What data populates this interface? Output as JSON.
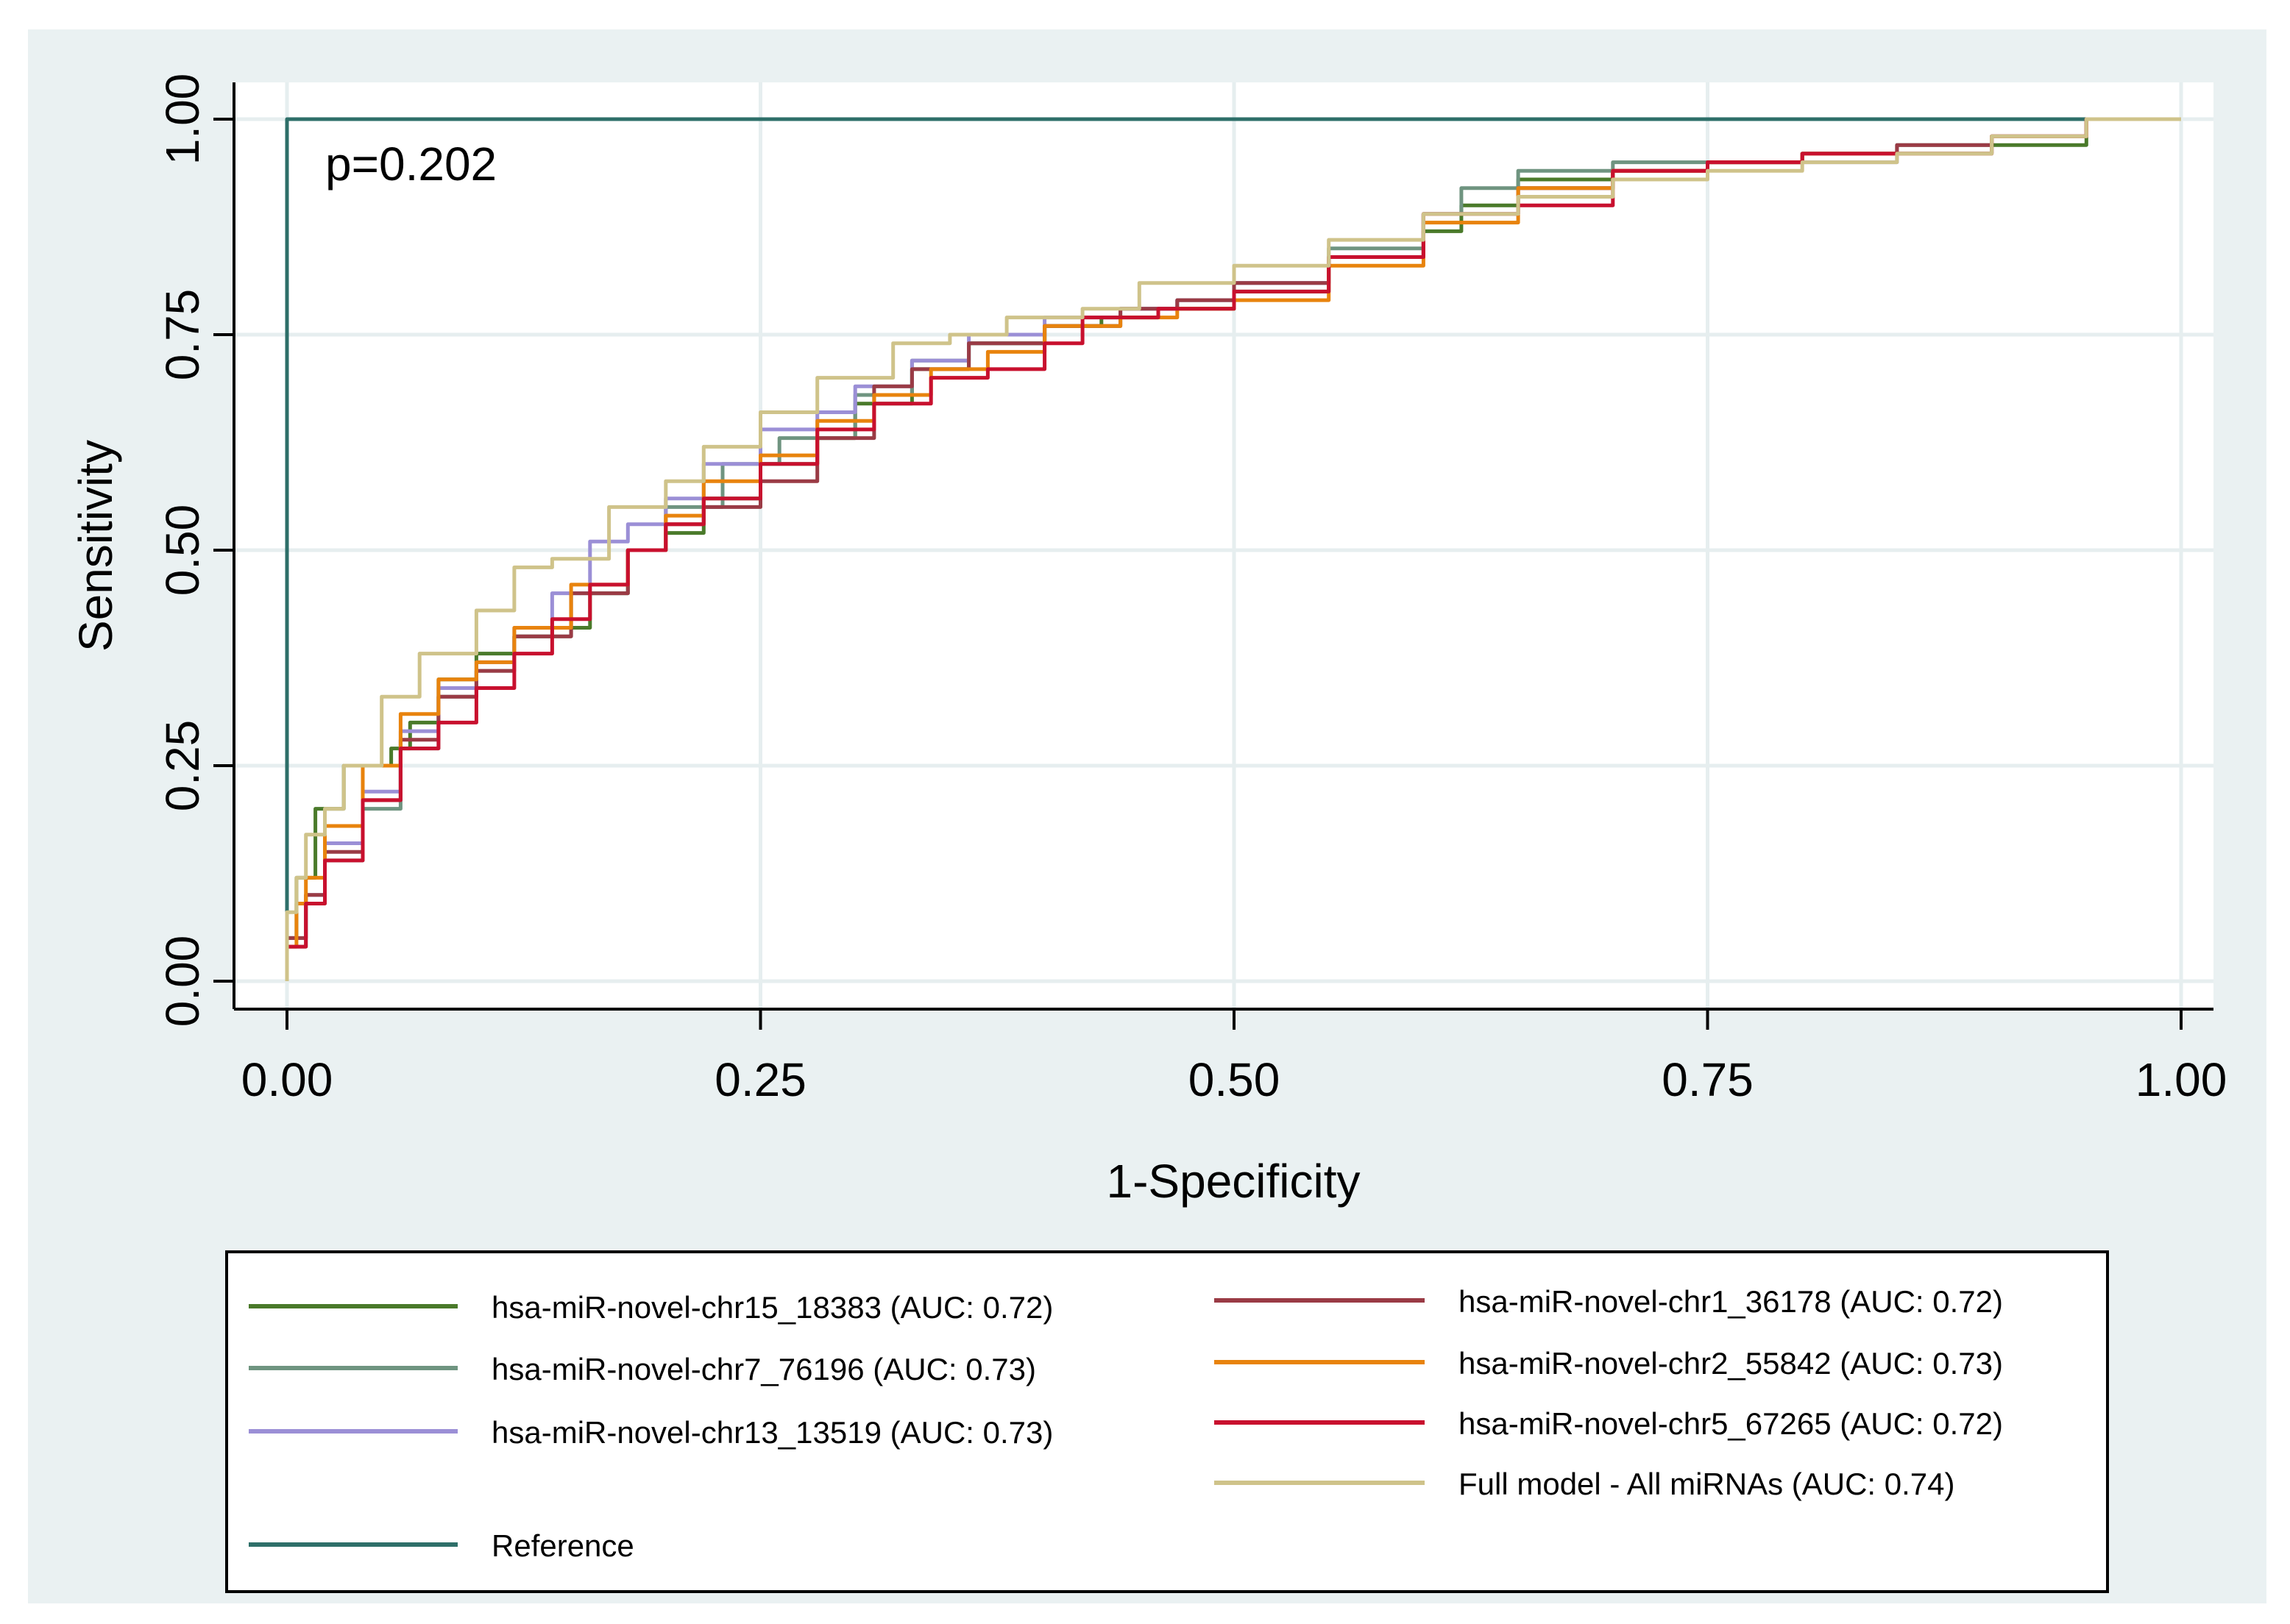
{
  "chart_data": {
    "type": "line",
    "title": "",
    "annotation": "p=0.202",
    "xlabel": "1-Specificity",
    "ylabel": "Sensitivity",
    "xlim": [
      0,
      1
    ],
    "ylim": [
      0,
      1
    ],
    "xticks": [
      0,
      0.25,
      0.5,
      0.75,
      1
    ],
    "xtick_labels": [
      "0.00",
      "0.25",
      "0.50",
      "0.75",
      "1.00"
    ],
    "yticks": [
      0,
      0.25,
      0.5,
      0.75,
      1
    ],
    "ytick_labels": [
      "0.00",
      "0.25",
      "0.50",
      "0.75",
      "1.00"
    ],
    "grid": true,
    "legend_position": "bottom",
    "series": [
      {
        "name": "hsa-miR-novel-chr15_18383 (AUC: 0.72)",
        "color": "#4a7a2a",
        "x": [
          0,
          0.005,
          0.015,
          0.03,
          0.04,
          0.055,
          0.065,
          0.08,
          0.1,
          0.12,
          0.14,
          0.16,
          0.18,
          0.2,
          0.22,
          0.25,
          0.28,
          0.3,
          0.33,
          0.36,
          0.4,
          0.43,
          0.46,
          0.5,
          0.55,
          0.6,
          0.62,
          0.65,
          0.7,
          0.75,
          0.8,
          0.85,
          0.9,
          0.95,
          1
        ],
        "y": [
          0,
          0.05,
          0.12,
          0.2,
          0.25,
          0.25,
          0.27,
          0.3,
          0.35,
          0.38,
          0.4,
          0.41,
          0.45,
          0.5,
          0.52,
          0.56,
          0.6,
          0.63,
          0.67,
          0.71,
          0.74,
          0.76,
          0.77,
          0.78,
          0.8,
          0.84,
          0.87,
          0.9,
          0.93,
          0.94,
          0.95,
          0.96,
          0.96,
          0.97,
          1
        ]
      },
      {
        "name": "hsa-miR-novel-chr7_76196 (AUC: 0.73)",
        "color": "#6f9480",
        "x": [
          0,
          0.01,
          0.02,
          0.04,
          0.06,
          0.08,
          0.1,
          0.12,
          0.15,
          0.18,
          0.2,
          0.23,
          0.26,
          0.3,
          0.33,
          0.36,
          0.4,
          0.44,
          0.47,
          0.5,
          0.55,
          0.6,
          0.62,
          0.65,
          0.7,
          0.75,
          0.8,
          0.85,
          0.9,
          0.95,
          1
        ],
        "y": [
          0,
          0.04,
          0.09,
          0.14,
          0.2,
          0.27,
          0.33,
          0.36,
          0.4,
          0.45,
          0.5,
          0.55,
          0.6,
          0.63,
          0.68,
          0.72,
          0.74,
          0.76,
          0.78,
          0.79,
          0.81,
          0.85,
          0.89,
          0.92,
          0.94,
          0.95,
          0.95,
          0.96,
          0.97,
          0.98,
          1
        ]
      },
      {
        "name": "hsa-miR-novel-chr13_13519 (AUC: 0.73)",
        "color": "#9b8fd6",
        "x": [
          0,
          0.01,
          0.02,
          0.04,
          0.06,
          0.08,
          0.1,
          0.12,
          0.14,
          0.16,
          0.18,
          0.2,
          0.22,
          0.25,
          0.28,
          0.3,
          0.33,
          0.36,
          0.4,
          0.44,
          0.47,
          0.5,
          0.55,
          0.6,
          0.65,
          0.7,
          0.75,
          0.8,
          0.85,
          0.9,
          0.95,
          1
        ],
        "y": [
          0,
          0.05,
          0.1,
          0.16,
          0.22,
          0.29,
          0.34,
          0.37,
          0.41,
          0.45,
          0.51,
          0.53,
          0.56,
          0.6,
          0.64,
          0.66,
          0.69,
          0.72,
          0.75,
          0.77,
          0.78,
          0.79,
          0.81,
          0.84,
          0.89,
          0.92,
          0.94,
          0.95,
          0.95,
          0.96,
          0.98,
          1
        ]
      },
      {
        "name": "hsa-miR-novel-chr1_36178 (AUC: 0.72)",
        "color": "#9a3b45",
        "x": [
          0,
          0.01,
          0.02,
          0.04,
          0.06,
          0.08,
          0.1,
          0.12,
          0.15,
          0.18,
          0.2,
          0.22,
          0.25,
          0.28,
          0.31,
          0.33,
          0.36,
          0.4,
          0.44,
          0.47,
          0.5,
          0.55,
          0.6,
          0.65,
          0.7,
          0.75,
          0.8,
          0.85,
          0.9,
          0.95,
          1
        ],
        "y": [
          0,
          0.05,
          0.1,
          0.15,
          0.21,
          0.28,
          0.33,
          0.36,
          0.4,
          0.45,
          0.5,
          0.53,
          0.55,
          0.58,
          0.63,
          0.69,
          0.71,
          0.74,
          0.76,
          0.78,
          0.79,
          0.81,
          0.84,
          0.89,
          0.92,
          0.94,
          0.95,
          0.96,
          0.97,
          0.98,
          1
        ]
      },
      {
        "name": "hsa-miR-novel-chr2_55842 (AUC: 0.73)",
        "color": "#e8830d",
        "x": [
          0,
          0.005,
          0.01,
          0.02,
          0.04,
          0.06,
          0.08,
          0.1,
          0.12,
          0.15,
          0.18,
          0.2,
          0.22,
          0.25,
          0.28,
          0.31,
          0.34,
          0.37,
          0.4,
          0.44,
          0.47,
          0.5,
          0.55,
          0.6,
          0.65,
          0.7,
          0.75,
          0.8,
          0.85,
          0.9,
          0.95,
          1
        ],
        "y": [
          0,
          0.04,
          0.09,
          0.12,
          0.18,
          0.25,
          0.31,
          0.35,
          0.37,
          0.41,
          0.46,
          0.5,
          0.54,
          0.58,
          0.61,
          0.65,
          0.68,
          0.71,
          0.73,
          0.76,
          0.77,
          0.78,
          0.79,
          0.83,
          0.88,
          0.92,
          0.94,
          0.95,
          0.96,
          0.96,
          0.98,
          1
        ]
      },
      {
        "name": "hsa-miR-novel-chr5_67265 (AUC: 0.72)",
        "color": "#c8102e",
        "x": [
          0,
          0.01,
          0.02,
          0.04,
          0.06,
          0.08,
          0.1,
          0.12,
          0.14,
          0.16,
          0.18,
          0.2,
          0.22,
          0.25,
          0.28,
          0.31,
          0.34,
          0.37,
          0.4,
          0.42,
          0.46,
          0.5,
          0.55,
          0.6,
          0.65,
          0.7,
          0.75,
          0.8,
          0.85,
          0.9,
          0.95,
          1
        ],
        "y": [
          0,
          0.04,
          0.09,
          0.14,
          0.21,
          0.27,
          0.3,
          0.34,
          0.38,
          0.42,
          0.46,
          0.5,
          0.53,
          0.56,
          0.6,
          0.64,
          0.67,
          0.7,
          0.71,
          0.74,
          0.77,
          0.78,
          0.8,
          0.84,
          0.89,
          0.9,
          0.94,
          0.95,
          0.96,
          0.96,
          0.98,
          1
        ]
      },
      {
        "name": "Full model - All miRNAs (AUC: 0.74)",
        "color": "#cfc38a",
        "x": [
          0,
          0.005,
          0.01,
          0.02,
          0.03,
          0.05,
          0.07,
          0.1,
          0.12,
          0.14,
          0.17,
          0.2,
          0.22,
          0.25,
          0.28,
          0.32,
          0.35,
          0.38,
          0.42,
          0.45,
          0.5,
          0.55,
          0.6,
          0.65,
          0.7,
          0.75,
          0.8,
          0.85,
          0.9,
          0.95,
          1
        ],
        "y": [
          0,
          0.08,
          0.12,
          0.17,
          0.2,
          0.25,
          0.33,
          0.38,
          0.43,
          0.48,
          0.49,
          0.55,
          0.58,
          0.62,
          0.66,
          0.7,
          0.74,
          0.75,
          0.77,
          0.78,
          0.81,
          0.83,
          0.86,
          0.89,
          0.91,
          0.93,
          0.94,
          0.95,
          0.96,
          0.98,
          1
        ]
      },
      {
        "name": "Reference",
        "color": "#2e6f69",
        "x": [
          0,
          1
        ],
        "y": [
          0,
          1
        ]
      }
    ]
  }
}
